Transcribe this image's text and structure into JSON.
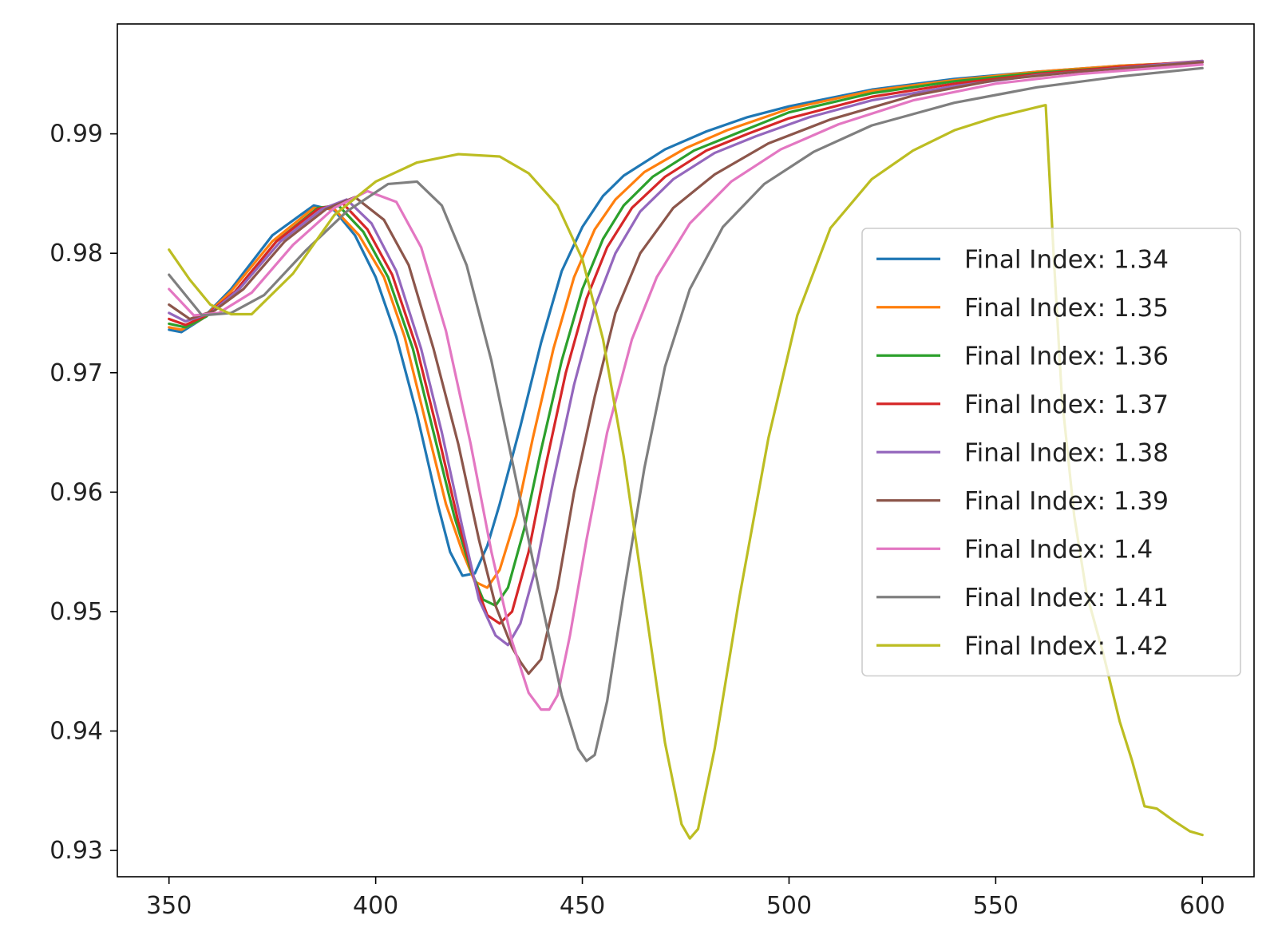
{
  "chart_data": {
    "type": "line",
    "title": "",
    "xlabel": "",
    "ylabel": "",
    "xlim": [
      337.5,
      612.5
    ],
    "ylim": [
      0.9278,
      0.9992
    ],
    "xticks": [
      350,
      400,
      450,
      500,
      550,
      600
    ],
    "yticks": [
      0.93,
      0.94,
      0.95,
      0.96,
      0.97,
      0.98,
      0.99
    ],
    "xtick_labels": [
      "350",
      "400",
      "450",
      "500",
      "550",
      "600"
    ],
    "ytick_labels": [
      "0.93",
      "0.94",
      "0.95",
      "0.96",
      "0.97",
      "0.98",
      "0.99"
    ],
    "grid": false,
    "legend_position": "center-right",
    "series": [
      {
        "name": "Final Index: 1.34",
        "color": "#1f77b4",
        "x": [
          350,
          353,
          358,
          365,
          375,
          385,
          390,
          395,
          400,
          405,
          410,
          415,
          418,
          421,
          424,
          427,
          430,
          435,
          440,
          445,
          450,
          455,
          460,
          470,
          480,
          490,
          500,
          520,
          540,
          560,
          580,
          600
        ],
        "y": [
          0.9736,
          0.9734,
          0.9745,
          0.977,
          0.9815,
          0.984,
          0.9836,
          0.9815,
          0.978,
          0.973,
          0.9665,
          0.959,
          0.955,
          0.953,
          0.9532,
          0.9555,
          0.959,
          0.9655,
          0.9725,
          0.9785,
          0.9822,
          0.9848,
          0.9865,
          0.9887,
          0.9902,
          0.9914,
          0.9923,
          0.9937,
          0.9946,
          0.9952,
          0.9957,
          0.996
        ]
      },
      {
        "name": "Final Index: 1.35",
        "color": "#ff7f0e",
        "x": [
          350,
          353,
          358,
          365,
          375,
          385,
          390,
          396,
          402,
          407,
          412,
          417,
          421,
          424,
          427,
          430,
          434,
          438,
          443,
          448,
          453,
          458,
          465,
          475,
          485,
          500,
          520,
          540,
          560,
          580,
          600
        ],
        "y": [
          0.9738,
          0.9736,
          0.9745,
          0.9768,
          0.981,
          0.9838,
          0.9837,
          0.9815,
          0.978,
          0.973,
          0.966,
          0.959,
          0.955,
          0.9525,
          0.952,
          0.9535,
          0.958,
          0.9645,
          0.972,
          0.978,
          0.982,
          0.9845,
          0.9868,
          0.9888,
          0.9903,
          0.9921,
          0.9936,
          0.9945,
          0.9952,
          0.9957,
          0.996
        ]
      },
      {
        "name": "Final Index: 1.36",
        "color": "#2ca02c",
        "x": [
          350,
          354,
          359,
          366,
          376,
          386,
          391,
          397,
          403,
          409,
          414,
          419,
          423,
          426,
          429,
          432,
          436,
          440,
          445,
          450,
          455,
          460,
          467,
          477,
          487,
          500,
          520,
          540,
          560,
          580,
          600
        ],
        "y": [
          0.9741,
          0.9738,
          0.9747,
          0.9768,
          0.981,
          0.9838,
          0.984,
          0.9818,
          0.978,
          0.972,
          0.965,
          0.958,
          0.9535,
          0.951,
          0.9505,
          0.952,
          0.957,
          0.9635,
          0.971,
          0.977,
          0.9812,
          0.984,
          0.9864,
          0.9886,
          0.99,
          0.9918,
          0.9934,
          0.9944,
          0.9951,
          0.9956,
          0.996
        ]
      },
      {
        "name": "Final Index: 1.37",
        "color": "#d62728",
        "x": [
          350,
          354,
          359,
          366,
          376,
          386,
          392,
          398,
          404,
          410,
          415,
          420,
          424,
          427,
          430,
          433,
          437,
          441,
          446,
          451,
          456,
          462,
          470,
          480,
          490,
          500,
          520,
          540,
          560,
          580,
          600
        ],
        "y": [
          0.9745,
          0.974,
          0.9748,
          0.9768,
          0.981,
          0.9837,
          0.9842,
          0.982,
          0.9782,
          0.972,
          0.965,
          0.9575,
          0.9525,
          0.9497,
          0.949,
          0.95,
          0.955,
          0.962,
          0.97,
          0.9762,
          0.9805,
          0.9838,
          0.9864,
          0.9886,
          0.99,
          0.9913,
          0.9931,
          0.9942,
          0.995,
          0.9956,
          0.9961
        ]
      },
      {
        "name": "Final Index: 1.38",
        "color": "#9467bd",
        "x": [
          350,
          354,
          360,
          367,
          377,
          387,
          393,
          399,
          405,
          411,
          416,
          421,
          425,
          429,
          432,
          435,
          439,
          443,
          448,
          453,
          458,
          464,
          472,
          482,
          492,
          505,
          520,
          540,
          560,
          580,
          600
        ],
        "y": [
          0.975,
          0.9743,
          0.975,
          0.977,
          0.981,
          0.9837,
          0.9845,
          0.9825,
          0.9785,
          0.972,
          0.965,
          0.957,
          0.951,
          0.948,
          0.9472,
          0.949,
          0.954,
          0.961,
          0.969,
          0.9755,
          0.98,
          0.9835,
          0.9862,
          0.9884,
          0.9898,
          0.9914,
          0.9928,
          0.994,
          0.9949,
          0.9955,
          0.9961
        ]
      },
      {
        "name": "Final Index: 1.39",
        "color": "#8c564b",
        "x": [
          350,
          355,
          361,
          368,
          378,
          388,
          395,
          402,
          408,
          414,
          420,
          425,
          429,
          433,
          435,
          437,
          440,
          444,
          448,
          453,
          458,
          464,
          472,
          482,
          495,
          510,
          530,
          550,
          570,
          600
        ],
        "y": [
          0.9757,
          0.9745,
          0.9752,
          0.977,
          0.981,
          0.9837,
          0.9847,
          0.9828,
          0.979,
          0.972,
          0.964,
          0.956,
          0.9505,
          0.947,
          0.9458,
          0.9448,
          0.946,
          0.952,
          0.96,
          0.968,
          0.975,
          0.98,
          0.9838,
          0.9866,
          0.9892,
          0.9912,
          0.9932,
          0.9945,
          0.9952,
          0.996
        ]
      },
      {
        "name": "Final Index: 1.4",
        "color": "#e377c2",
        "x": [
          350,
          356,
          362,
          370,
          380,
          390,
          398,
          405,
          411,
          417,
          423,
          428,
          433,
          437,
          440,
          442,
          444,
          447,
          451,
          456,
          462,
          468,
          476,
          486,
          498,
          512,
          530,
          550,
          570,
          600
        ],
        "y": [
          0.977,
          0.9748,
          0.975,
          0.9767,
          0.9807,
          0.9838,
          0.9852,
          0.9843,
          0.9805,
          0.9735,
          0.964,
          0.955,
          0.9475,
          0.9432,
          0.9418,
          0.9418,
          0.943,
          0.948,
          0.956,
          0.965,
          0.9728,
          0.978,
          0.9825,
          0.986,
          0.9887,
          0.9908,
          0.9928,
          0.9942,
          0.995,
          0.9958
        ]
      },
      {
        "name": "Final Index: 1.41",
        "color": "#7f7f7f",
        "x": [
          350,
          358,
          365,
          373,
          383,
          393,
          403,
          410,
          416,
          422,
          428,
          434,
          440,
          445,
          449,
          451,
          453,
          456,
          460,
          465,
          470,
          476,
          484,
          494,
          506,
          520,
          540,
          560,
          580,
          600
        ],
        "y": [
          0.9782,
          0.9748,
          0.975,
          0.9765,
          0.9802,
          0.9835,
          0.9858,
          0.986,
          0.984,
          0.979,
          0.971,
          0.961,
          0.951,
          0.943,
          0.9385,
          0.9375,
          0.938,
          0.9425,
          0.9515,
          0.962,
          0.9705,
          0.977,
          0.9822,
          0.9858,
          0.9885,
          0.9907,
          0.9926,
          0.9939,
          0.9948,
          0.9955
        ]
      },
      {
        "name": "Final Index: 1.42",
        "color": "#bcbd22",
        "x": [
          350,
          355,
          360,
          365,
          370,
          380,
          390,
          400,
          410,
          420,
          430,
          437,
          444,
          450,
          455,
          460,
          465,
          470,
          474,
          476,
          478,
          482,
          488,
          495,
          502,
          510,
          520,
          530,
          540,
          550,
          556,
          562,
          562.1,
          564,
          566,
          569,
          572,
          576,
          580,
          583,
          586,
          589,
          593,
          597,
          600
        ],
        "y": [
          0.9803,
          0.9778,
          0.9757,
          0.9749,
          0.9749,
          0.9783,
          0.9832,
          0.986,
          0.9876,
          0.9883,
          0.9881,
          0.9867,
          0.984,
          0.9795,
          0.9728,
          0.963,
          0.951,
          0.939,
          0.9322,
          0.931,
          0.9318,
          0.9385,
          0.9512,
          0.9645,
          0.9748,
          0.9821,
          0.9862,
          0.9886,
          0.9903,
          0.9914,
          0.9919,
          0.9924,
          0.9924,
          0.98,
          0.968,
          0.958,
          0.9515,
          0.9465,
          0.9408,
          0.9375,
          0.9337,
          0.9335,
          0.9325,
          0.9316,
          0.9313
        ]
      }
    ]
  }
}
